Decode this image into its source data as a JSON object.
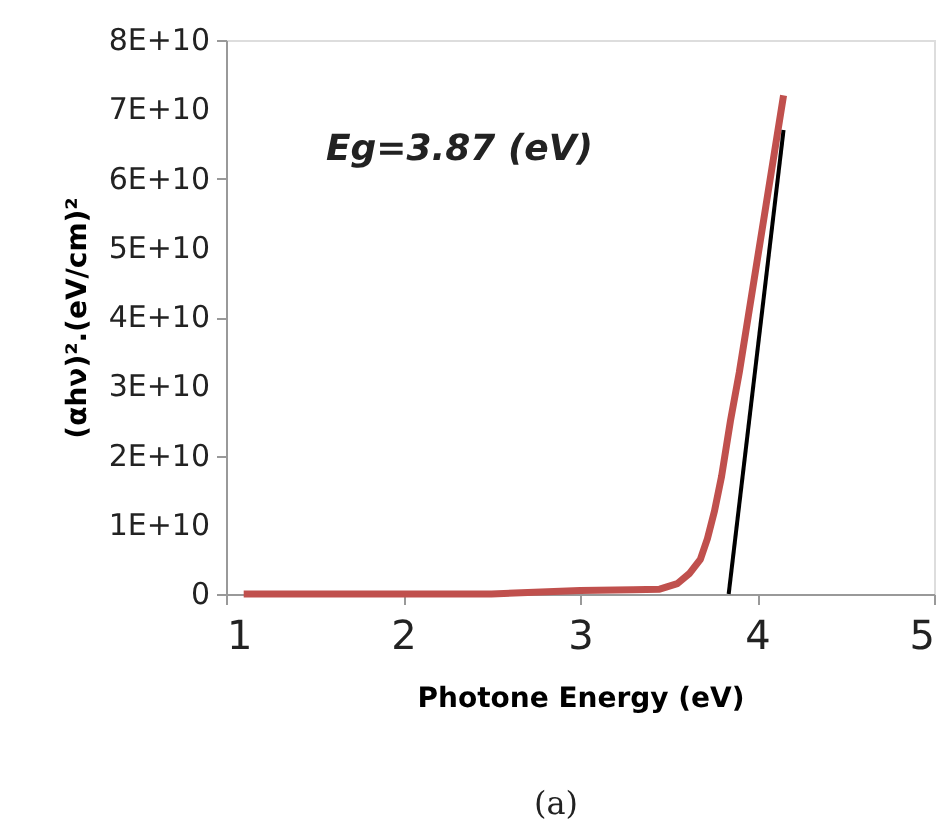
{
  "chart_data": {
    "type": "line",
    "xlabel": "Photone Energy (eV)",
    "ylabel": "(αhν)².(eV/cm)²",
    "annotations": [
      "Eg=3.87 (eV)",
      "(a)"
    ],
    "series": [
      {
        "type": "line",
        "color": "#c0504d",
        "x": [
          1.1,
          1.5,
          2.0,
          2.5,
          3.0,
          3.3,
          3.45,
          3.55,
          3.62,
          3.68,
          3.72,
          3.76,
          3.8,
          3.85,
          3.9,
          3.95,
          4.0,
          4.05,
          4.1,
          4.15
        ],
        "values": [
          0,
          0,
          0,
          0,
          500000000,
          600000000,
          700000000,
          1500000000,
          3000000000,
          5000000000,
          8000000000,
          12000000000,
          17000000000,
          25000000000,
          32000000000,
          40000000000,
          48000000000,
          56000000000,
          64000000000,
          72000000000
        ]
      },
      {
        "type": "line",
        "color": "#000000",
        "x": [
          3.84,
          4.15
        ],
        "values": [
          0,
          67000000000
        ]
      }
    ],
    "xlim": [
      1,
      5
    ],
    "xticks": [
      1,
      2,
      3,
      4,
      5
    ],
    "ylim": [
      0,
      80000000000
    ],
    "yticks": [
      0,
      {
        "value": 10000000000,
        "label": "1E+10"
      },
      {
        "value": 20000000000,
        "label": "2E+10"
      },
      {
        "value": 30000000000,
        "label": "3E+10"
      },
      {
        "value": 40000000000,
        "label": "4E+10"
      },
      {
        "value": 50000000000,
        "label": "5E+10"
      },
      {
        "value": 60000000000,
        "label": "6E+10"
      },
      {
        "value": 70000000000,
        "label": "7E+10"
      },
      {
        "value": 80000000000,
        "label": "8E+10"
      }
    ],
    "grid": false,
    "legend": false,
    "marker": "none",
    "line_style": "solid"
  }
}
